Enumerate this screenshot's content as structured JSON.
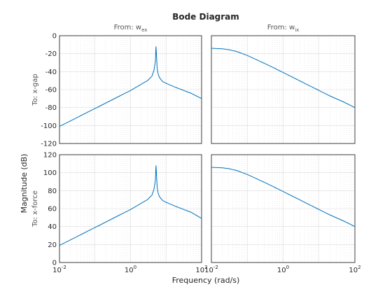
{
  "chart_data": {
    "type": "line",
    "title": "Bode Diagram",
    "xlabel": "Frequency  (rad/s)",
    "ylabel": "Magnitude (dB)",
    "x_scale": "log",
    "xlim": [
      0.01,
      100
    ],
    "x_tick_labels": [
      {
        "value": 0.01,
        "base": "10",
        "exp": "-2"
      },
      {
        "value": 1,
        "base": "10",
        "exp": "0"
      },
      {
        "value": 100,
        "base": "10",
        "exp": "2"
      }
    ],
    "grid": true,
    "line_color": "#0072bd",
    "inputs": [
      {
        "prefix": "From: w",
        "sub": "ex"
      },
      {
        "prefix": "From: w",
        "sub": "ix"
      }
    ],
    "outputs": [
      "To: x-gap",
      "To: x-force"
    ],
    "rows": [
      {
        "output": "To: x-gap",
        "ylim": [
          -120,
          0
        ],
        "y_ticks": [
          -120,
          -100,
          -80,
          -60,
          -40,
          -20,
          0
        ],
        "y_tick_labels": [
          "-120",
          "-100",
          "-80",
          "-60",
          "-40",
          "-20",
          "0"
        ]
      },
      {
        "output": "To: x-force",
        "ylim": [
          0,
          120
        ],
        "y_ticks": [
          0,
          20,
          40,
          60,
          80,
          100,
          120
        ],
        "y_tick_labels": [
          "0",
          "20",
          "40",
          "60",
          "80",
          "100",
          "120"
        ]
      }
    ],
    "series": [
      {
        "row": 0,
        "col": 0,
        "x": [
          0.01,
          0.1,
          0.5,
          1,
          2,
          3,
          4,
          4.6,
          5.0,
          5.2,
          5.4,
          5.6,
          6.0,
          6.6,
          8,
          10,
          20,
          50,
          100
        ],
        "y": [
          -101,
          -81,
          -67,
          -61,
          -54,
          -50,
          -45,
          -38,
          -28,
          -12,
          -24,
          -36,
          -43,
          -47,
          -51,
          -53,
          -58,
          -64,
          -70
        ]
      },
      {
        "row": 0,
        "col": 1,
        "x": [
          0.01,
          0.02,
          0.03,
          0.05,
          0.1,
          0.2,
          0.5,
          1,
          2,
          5,
          10,
          20,
          50,
          100
        ],
        "y": [
          -14,
          -14.6,
          -15.5,
          -17.5,
          -22,
          -27.5,
          -35,
          -41,
          -47,
          -55,
          -61,
          -67,
          -74,
          -80
        ]
      },
      {
        "row": 1,
        "col": 0,
        "x": [
          0.01,
          0.1,
          0.5,
          1,
          2,
          3,
          4,
          4.6,
          5.0,
          5.2,
          5.4,
          5.6,
          6.0,
          6.6,
          8,
          10,
          20,
          50,
          100
        ],
        "y": [
          19,
          39,
          53,
          59,
          66,
          70,
          75,
          82,
          92,
          108,
          96,
          84,
          77,
          73,
          69,
          67,
          62,
          56,
          49
        ]
      },
      {
        "row": 1,
        "col": 1,
        "x": [
          0.01,
          0.02,
          0.03,
          0.05,
          0.1,
          0.2,
          0.5,
          1,
          2,
          5,
          10,
          20,
          50,
          100
        ],
        "y": [
          106,
          105.4,
          104.5,
          102.5,
          98,
          92.5,
          85,
          79,
          73,
          65,
          59,
          53,
          46,
          40
        ]
      }
    ]
  }
}
